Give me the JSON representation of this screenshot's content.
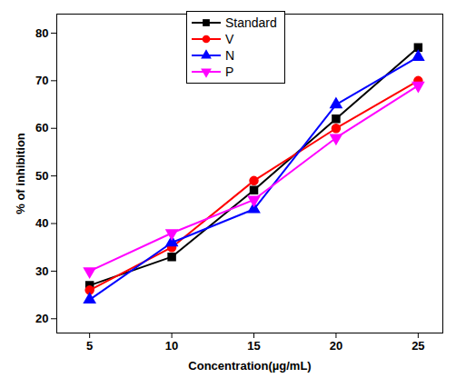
{
  "chart_data": {
    "type": "line",
    "x_label": "Concentration(µg/mL)",
    "y_label": "% of inhibition",
    "x": [
      5,
      10,
      15,
      20,
      25
    ],
    "xlim": [
      3,
      26.5
    ],
    "xticks": [
      5,
      10,
      15,
      20,
      25
    ],
    "ylim": [
      17,
      84
    ],
    "yticks": [
      20,
      30,
      40,
      50,
      60,
      70,
      80
    ],
    "grid": false,
    "legend": "upper left",
    "series": [
      {
        "name": "Standard",
        "color": "#000000",
        "marker": "square",
        "values": [
          27,
          33,
          47,
          62,
          77
        ]
      },
      {
        "name": "V",
        "color": "#ff0000",
        "marker": "circle",
        "values": [
          26,
          35,
          49,
          60,
          70
        ]
      },
      {
        "name": "N",
        "color": "#0000ff",
        "marker": "triangle",
        "values": [
          24,
          36,
          43,
          65,
          75
        ]
      },
      {
        "name": "P",
        "color": "#ff00ff",
        "marker": "triangle-down",
        "values": [
          30,
          38,
          45,
          58,
          69
        ]
      }
    ]
  }
}
